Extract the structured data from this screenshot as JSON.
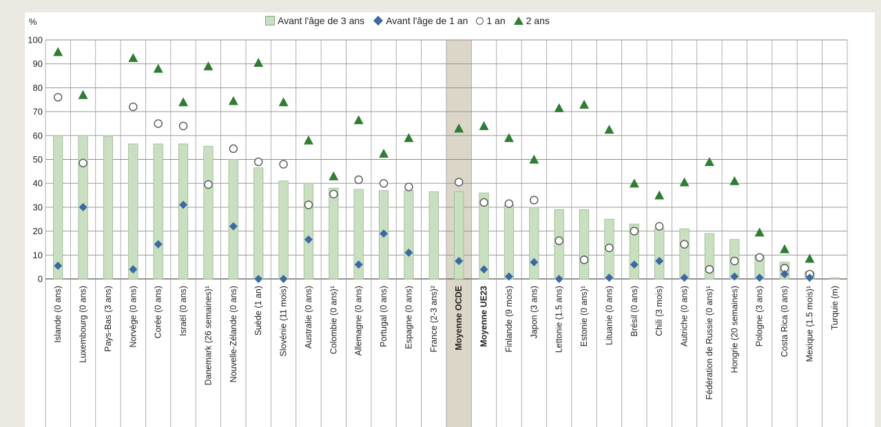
{
  "chart_data": {
    "type": "bar",
    "ylabel": "%",
    "ylim": [
      0,
      100
    ],
    "yticks": [
      0,
      10,
      20,
      30,
      40,
      50,
      60,
      70,
      80,
      90,
      100
    ],
    "grid": true,
    "legend_position": "top",
    "highlight_category": "Moyenne OCDE",
    "bold_categories": [
      "Moyenne OCDE",
      "Moyenne UE23"
    ],
    "categories": [
      "Islande (0 ans)",
      "Luxembourg (0 ans)",
      "Pays-Bas (3 ans)",
      "Norvège (0 ans)",
      "Corée (0 ans)",
      "Israël (0 ans)",
      "Danemark (26 semaines)¹",
      "Nouvelle-Zélande (0 ans)",
      "Suède (1 an)",
      "Slovénie (11 mois)",
      "Australie (0 ans)",
      "Colombie (0 ans)¹",
      "Allemagne (0 ans)",
      "Portugal (0 ans)",
      "Espagne (0 ans)",
      "France (2-3 ans)²",
      "Moyenne OCDE",
      "Moyenne UE23",
      "Finlande (9 mois)",
      "Japon (3 ans)",
      "Lettonie (1.5 ans)",
      "Estonie (0 ans)¹",
      "Lituanie (0 ans)",
      "Brésil (0 ans)",
      "Chili (3 mois)",
      "Autriche (0 ans)",
      "Fédération de Russie (0 ans)¹",
      "Hongrie (20 semaines)",
      "Pologne (3 ans)",
      "Costa Rica (0 ans)",
      "Mexique (1.5 mois)¹",
      "Turquie (m)"
    ],
    "series": [
      {
        "name": "Avant l'âge de 3 ans",
        "type": "bar",
        "color": "#c8dfc0",
        "values": [
          60,
          60,
          59.5,
          56.5,
          56.5,
          56.5,
          55.5,
          50,
          46.5,
          41,
          40,
          38,
          37.5,
          37,
          37,
          36.5,
          36.5,
          36,
          31,
          30,
          29,
          29,
          25,
          23,
          21,
          21,
          19,
          16.5,
          10,
          7,
          3,
          0.5
        ]
      },
      {
        "name": "Avant l'âge de 1 an",
        "type": "diamond",
        "color": "#3c69a4",
        "values": [
          5.5,
          30,
          null,
          4,
          14.5,
          31,
          null,
          22,
          0,
          0,
          16.5,
          null,
          6,
          19,
          11,
          null,
          7.5,
          4,
          1,
          7,
          0,
          null,
          0.5,
          6,
          7.5,
          0.5,
          null,
          1,
          0.5,
          2,
          0.5,
          null
        ]
      },
      {
        "name": "1 an",
        "type": "circle",
        "color": "#ffffff",
        "values": [
          76,
          48.5,
          null,
          72,
          65,
          64,
          39.5,
          54.5,
          49,
          48,
          31,
          35.5,
          41.5,
          40,
          38.5,
          null,
          40.5,
          32,
          31.5,
          33,
          16,
          8,
          13,
          20,
          22,
          14.5,
          4,
          7.5,
          9,
          4.5,
          2,
          null
        ]
      },
      {
        "name": "2 ans",
        "type": "triangle",
        "color": "#2e7d32",
        "values": [
          95,
          77,
          null,
          92.5,
          88,
          74,
          89,
          74.5,
          90.5,
          74,
          58,
          43,
          66.5,
          52.5,
          59,
          null,
          63,
          64,
          59,
          50,
          71.5,
          73,
          62.5,
          40,
          35,
          40.5,
          49,
          41,
          19.5,
          12.5,
          8.5,
          null
        ]
      }
    ]
  }
}
